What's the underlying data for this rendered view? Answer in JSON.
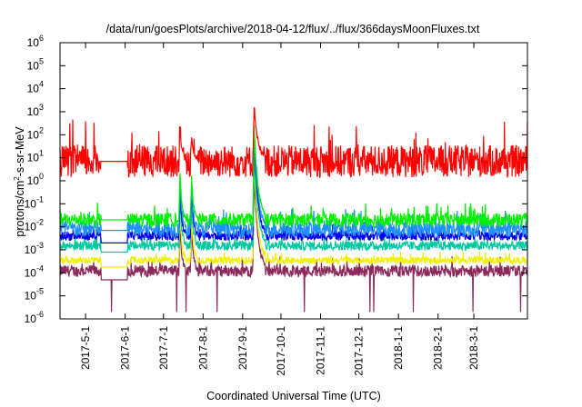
{
  "chart_data": {
    "type": "line",
    "title": "/data/run/goesPlots/archive/2018-04-12/flux/../flux/366daysMoonFluxes.txt",
    "xlabel": "Coordinated Universal Time (UTC)",
    "ylabel": {
      "base": "protons/cm",
      "sup": "2",
      "rest": "-s-sr-MeV"
    },
    "yscale": "log",
    "ylim": [
      1e-06,
      1000000.0
    ],
    "xlim": [
      "2017-04-11",
      "2018-04-12"
    ],
    "x_ticks": [
      "2017-5-1",
      "2017-6-1",
      "2017-7-1",
      "2017-8-1",
      "2017-9-1",
      "2017-10-1",
      "2017-11-1",
      "2017-12-1",
      "2018-1-1",
      "2018-2-1",
      "2018-3-1"
    ],
    "y_ticks": [
      {
        "base": "10",
        "exp": "-6"
      },
      {
        "base": "10",
        "exp": "-5"
      },
      {
        "base": "10",
        "exp": "-4"
      },
      {
        "base": "10",
        "exp": "-3"
      },
      {
        "base": "10",
        "exp": "-2"
      },
      {
        "base": "10",
        "exp": "-1"
      },
      {
        "base": "10",
        "exp": "0"
      },
      {
        "base": "10",
        "exp": "1"
      },
      {
        "base": "10",
        "exp": "2"
      },
      {
        "base": "10",
        "exp": "3"
      },
      {
        "base": "10",
        "exp": "4"
      },
      {
        "base": "10",
        "exp": "5"
      },
      {
        "base": "10",
        "exp": "6"
      }
    ],
    "grid": false,
    "legend": "none",
    "data_gap": [
      "2017-05-13",
      "2017-06-03"
    ],
    "event_peaks": [
      {
        "date": "2017-07-14",
        "note": "minor"
      },
      {
        "date": "2017-07-23",
        "note": "minor"
      },
      {
        "date": "2017-09-10",
        "note": "major"
      }
    ],
    "series": [
      {
        "color": "#ff0000",
        "values_typical": 7,
        "spread_decades": 1.4,
        "gap_value": 7,
        "peak_value": 2000
      },
      {
        "color": "#00ee00",
        "values_typical": 0.02,
        "spread_decades": 0.6,
        "gap_value": 0.02,
        "peak_value": 300
      },
      {
        "color": "#1e90ff",
        "values_typical": 0.008,
        "spread_decades": 0.7,
        "gap_value": 0.007,
        "peak_value": 150
      },
      {
        "color": "#0000ee",
        "values_typical": 0.004,
        "spread_decades": 0.4,
        "gap_value": 0.002,
        "peak_value": 60
      },
      {
        "color": "#00c8a0",
        "values_typical": 0.0015,
        "spread_decades": 0.4,
        "gap_value": 0.0008,
        "peak_value": 20
      },
      {
        "color": "#f0f000",
        "values_typical": 0.00035,
        "spread_decades": 0.3,
        "gap_value": 0.00018,
        "peak_value": 5
      },
      {
        "color": "#8b2a5a",
        "values_typical": 0.00012,
        "spread_decades": 0.5,
        "gap_value": 5e-05,
        "peak_value": 2
      }
    ]
  }
}
